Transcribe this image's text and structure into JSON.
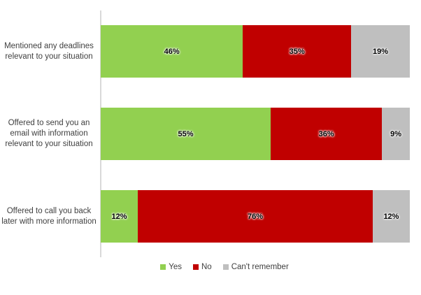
{
  "chart_data": {
    "type": "bar",
    "orientation": "horizontal_stacked",
    "title": "",
    "xlabel": "",
    "ylabel": "",
    "xlim": [
      0,
      100
    ],
    "grid": false,
    "value_format": "percent",
    "legend_position": "bottom",
    "categories": [
      "Mentioned any deadlines relevant to your situation",
      "Offered to send you an email with information relevant to your situation",
      "Offered to call you back later with more information"
    ],
    "series": [
      {
        "name": "Yes",
        "color": "#92D050",
        "values": [
          46,
          55,
          12
        ]
      },
      {
        "name": "No",
        "color": "#C00000",
        "values": [
          35,
          36,
          76
        ]
      },
      {
        "name": "Can't remember",
        "color": "#BFBFBF",
        "values": [
          19,
          9,
          12
        ]
      }
    ],
    "data_labels": [
      [
        "46%",
        "35%",
        "19%"
      ],
      [
        "55%",
        "36%",
        "9%"
      ],
      [
        "12%",
        "76%",
        "12%"
      ]
    ]
  },
  "colors": {
    "axis_line": "#d9d9d9",
    "label_text": "#404040",
    "data_label_text": "#000000",
    "background": "#ffffff"
  },
  "legend": {
    "items": [
      {
        "label": "Yes",
        "color": "#92D050"
      },
      {
        "label": "No",
        "color": "#C00000"
      },
      {
        "label": "Can't remember",
        "color": "#BFBFBF"
      }
    ]
  }
}
